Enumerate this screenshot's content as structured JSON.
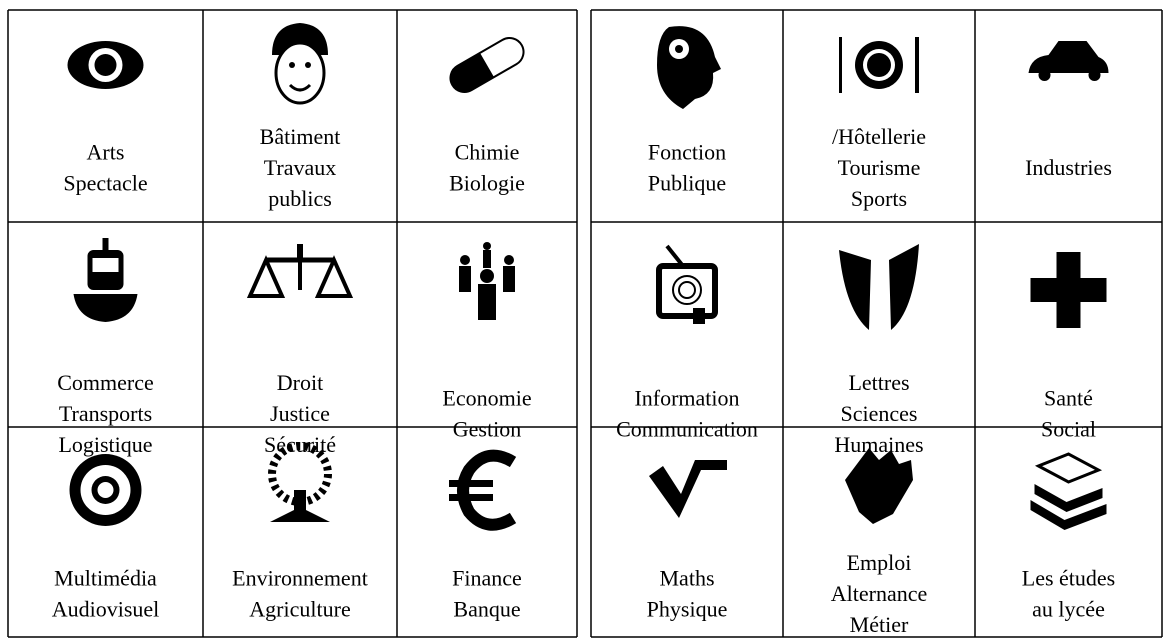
{
  "grids": [
    {
      "cells": [
        {
          "lines": [
            "Arts",
            "Spectacle"
          ]
        },
        {
          "lines": [
            "Bâtiment",
            "Travaux",
            "publics"
          ]
        },
        {
          "lines": [
            "Chimie",
            "Biologie"
          ]
        },
        {
          "lines": [
            "Commerce",
            "Transports",
            "Logistique"
          ]
        },
        {
          "lines": [
            "Droit",
            "Justice",
            "Sécurité"
          ]
        },
        {
          "lines": [
            "Economie",
            "Gestion"
          ]
        },
        {
          "lines": [
            "Multimédia",
            "Audiovisuel"
          ]
        },
        {
          "lines": [
            "Environnement",
            "Agriculture"
          ]
        },
        {
          "lines": [
            "Finance",
            "Banque"
          ]
        }
      ]
    },
    {
      "cells": [
        {
          "lines": [
            "Fonction",
            "Publique"
          ]
        },
        {
          "lines": [
            "/Hôtellerie",
            "Tourisme",
            "Sports"
          ]
        },
        {
          "lines": [
            "Industries"
          ]
        },
        {
          "lines": [
            "Information",
            "Communication"
          ]
        },
        {
          "lines": [
            "Lettres",
            "Sciences",
            "Humaines"
          ]
        },
        {
          "lines": [
            "Santé",
            "Social"
          ]
        },
        {
          "lines": [
            "Maths",
            "Physique"
          ]
        },
        {
          "lines": [
            "Emploi",
            "Alternance",
            "Métier"
          ]
        },
        {
          "lines": [
            "Les études",
            "au lycée"
          ]
        }
      ]
    }
  ]
}
